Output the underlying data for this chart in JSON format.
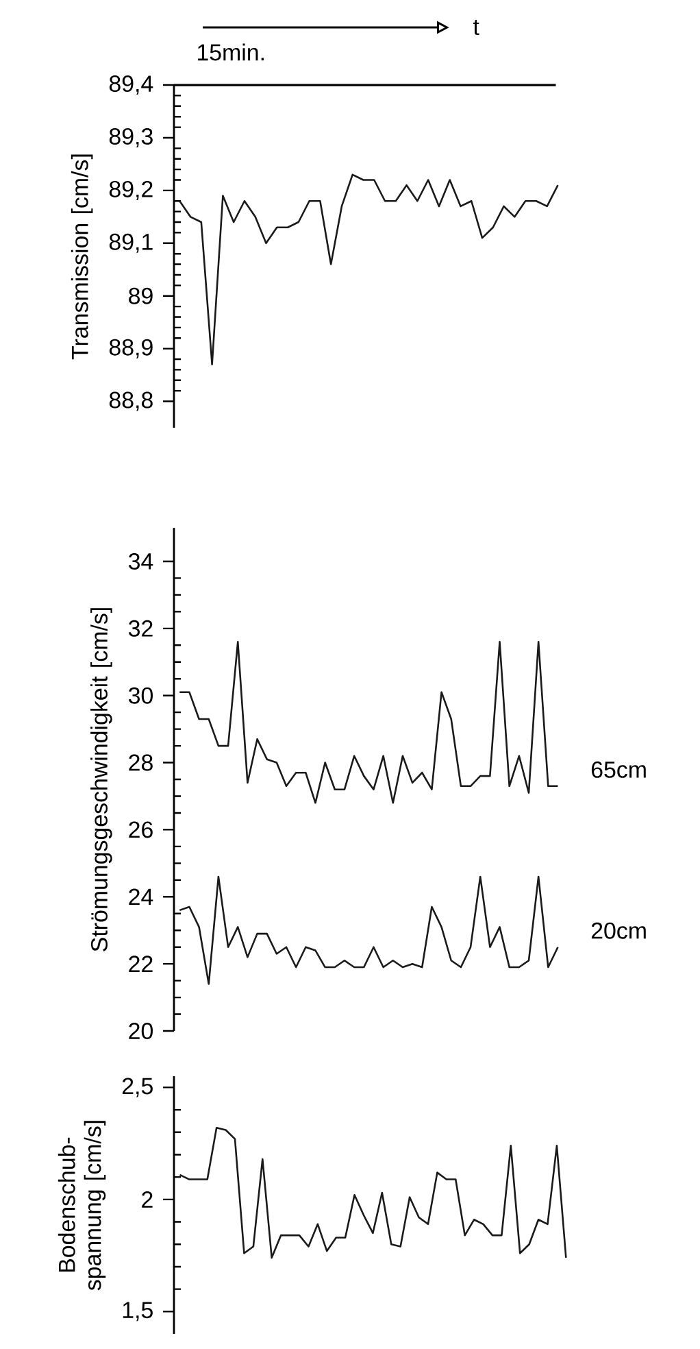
{
  "chart_data": [
    {
      "type": "line",
      "ylabel": "Transmission [cm/s]",
      "annotations": [
        "15min.",
        "t"
      ],
      "marker": "none",
      "tick_labels": "y",
      "categories": [
        null,
        null,
        null,
        null,
        null,
        null,
        null,
        null,
        null,
        null,
        null,
        null,
        null,
        null,
        null,
        null,
        null,
        null,
        null,
        null,
        null,
        null,
        null,
        null,
        null,
        null,
        null,
        null,
        null,
        null,
        null,
        null,
        null,
        null,
        null,
        null
      ],
      "series": [
        {
          "color": "#1a1a1a",
          "values": [
            89.18,
            89.15,
            89.14,
            88.87,
            89.19,
            89.14,
            89.18,
            89.15,
            89.1,
            89.13,
            89.13,
            89.14,
            89.18,
            89.18,
            89.06,
            89.17,
            89.23,
            89.22,
            89.22,
            89.18,
            89.18,
            89.21,
            89.18,
            89.22,
            89.17,
            89.22,
            89.17,
            89.18,
            89.11,
            89.13,
            89.17,
            89.15,
            89.18,
            89.18,
            89.17,
            89.21
          ]
        }
      ],
      "ylim": [
        88.75,
        89.4
      ],
      "yticks": [
        {
          "value": 88.8,
          "label": "88,8"
        },
        {
          "value": 88.9,
          "label": "88,9"
        },
        89,
        {
          "value": 89.1,
          "label": "89,1"
        },
        {
          "value": 89.2,
          "label": "89,2"
        },
        {
          "value": 89.3,
          "label": "89,3"
        },
        {
          "value": 89.4,
          "label": "89,4"
        }
      ],
      "ref_lines": [
        {
          "axis": "y",
          "value": 89.4
        }
      ]
    },
    {
      "type": "line",
      "ylabel": "Strömungsgeschwindigkeit [cm/s]",
      "marker": "none",
      "tick_labels": "y",
      "categories": [
        null,
        null,
        null,
        null,
        null,
        null,
        null,
        null,
        null,
        null,
        null,
        null,
        null,
        null,
        null,
        null,
        null,
        null,
        null,
        null,
        null,
        null,
        null,
        null,
        null,
        null,
        null,
        null,
        null,
        null,
        null,
        null,
        null,
        null,
        null,
        null,
        null,
        null,
        null,
        null
      ],
      "series": [
        {
          "name": "65cm",
          "color": "#1a1a1a",
          "values": [
            30.1,
            30.1,
            29.3,
            29.3,
            28.5,
            28.5,
            31.6,
            27.4,
            28.7,
            28.1,
            28.0,
            27.3,
            27.7,
            27.7,
            26.8,
            28.0,
            27.2,
            27.2,
            28.2,
            27.6,
            27.2,
            28.2,
            26.8,
            28.2,
            27.4,
            27.7,
            27.2,
            30.1,
            29.3,
            27.3,
            27.3,
            27.6,
            27.6,
            31.6,
            27.3,
            28.2,
            27.1,
            31.6,
            27.3,
            27.3
          ]
        },
        {
          "name": "20cm",
          "color": "#1a1a1a",
          "values": [
            23.6,
            23.7,
            23.1,
            21.4,
            24.6,
            22.5,
            23.1,
            22.2,
            22.9,
            22.9,
            22.3,
            22.5,
            21.9,
            22.5,
            22.4,
            21.9,
            21.9,
            22.1,
            21.9,
            21.9,
            22.5,
            21.9,
            22.1,
            21.9,
            22.0,
            21.9,
            23.7,
            23.1,
            22.1,
            21.9,
            22.5,
            24.6,
            22.5,
            23.1,
            21.9,
            21.9,
            22.1,
            24.6,
            21.9,
            22.5
          ]
        }
      ],
      "ylim": [
        20,
        35
      ],
      "yticks": [
        20,
        22,
        24,
        26,
        28,
        30,
        32,
        34
      ]
    },
    {
      "type": "line",
      "ylabel": "Bodenschub-spannung [cm/s]",
      "marker": "none",
      "tick_labels": "y",
      "categories": [
        null,
        null,
        null,
        null,
        null,
        null,
        null,
        null,
        null,
        null,
        null,
        null,
        null,
        null,
        null,
        null,
        null,
        null,
        null,
        null,
        null,
        null,
        null,
        null,
        null,
        null,
        null,
        null,
        null,
        null,
        null,
        null,
        null,
        null,
        null,
        null,
        null,
        null,
        null,
        null,
        null,
        null,
        null
      ],
      "series": [
        {
          "color": "#1a1a1a",
          "values": [
            2.11,
            2.09,
            2.09,
            2.09,
            2.32,
            2.31,
            2.27,
            1.76,
            1.79,
            2.18,
            1.74,
            1.84,
            1.84,
            1.84,
            1.79,
            1.89,
            1.77,
            1.83,
            1.83,
            2.02,
            1.93,
            1.85,
            2.03,
            1.8,
            1.79,
            2.01,
            1.92,
            1.89,
            2.12,
            2.09,
            2.09,
            1.84,
            1.91,
            1.89,
            1.84,
            1.84,
            2.24,
            1.76,
            1.8,
            1.91,
            1.89,
            2.24,
            1.74
          ]
        }
      ],
      "ylim": [
        1.4,
        2.55
      ],
      "yticks": [
        {
          "value": 1.5,
          "label": "1,5"
        },
        2,
        {
          "value": 2.5,
          "label": "2,5"
        }
      ]
    }
  ]
}
